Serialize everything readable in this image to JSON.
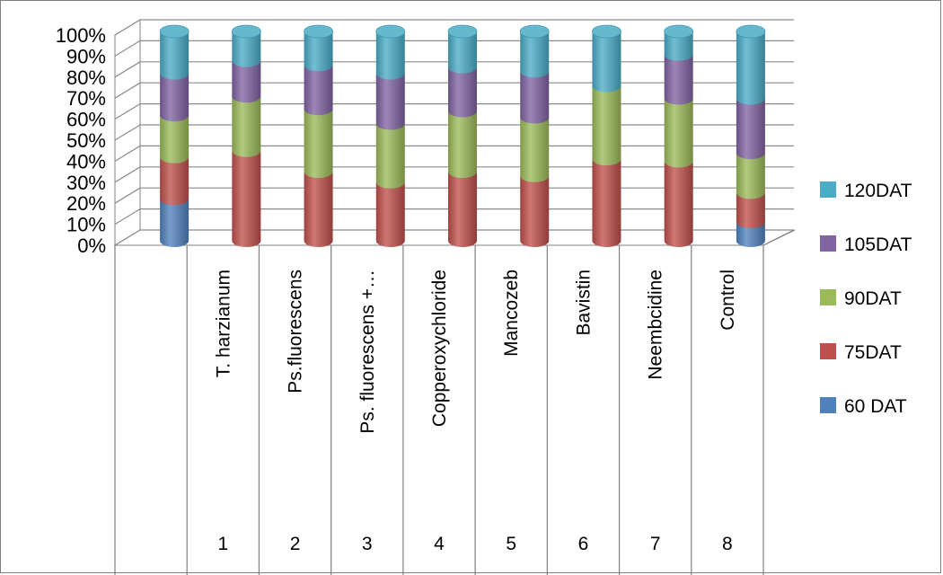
{
  "chart_data": {
    "type": "bar",
    "stacked": "percent",
    "style": "3d-cylinder",
    "categories": [
      {
        "number": "",
        "name": ""
      },
      {
        "number": "1",
        "name": "T. harzianum"
      },
      {
        "number": "2",
        "name": "Ps.fluorescens"
      },
      {
        "number": "3",
        "name": "Ps. fluorescens +…"
      },
      {
        "number": "4",
        "name": "Copperoxychloride"
      },
      {
        "number": "5",
        "name": "Mancozeb"
      },
      {
        "number": "6",
        "name": "Bavistin"
      },
      {
        "number": "7",
        "name": "Neembcidine"
      },
      {
        "number": "8",
        "name": "Control"
      }
    ],
    "series": [
      {
        "name": "60 DAT",
        "color": "#4f81bd",
        "values": [
          20,
          0,
          0,
          0,
          0,
          0,
          0,
          0,
          9
        ]
      },
      {
        "name": "75DAT",
        "color": "#c0504d",
        "values": [
          20,
          43,
          33,
          28,
          33,
          31,
          39,
          38,
          14
        ]
      },
      {
        "name": "90DAT",
        "color": "#9bbb59",
        "values": [
          20,
          26,
          30,
          28,
          29,
          28,
          35,
          30,
          19
        ]
      },
      {
        "name": "105DAT",
        "color": "#8064a2",
        "values": [
          20,
          17,
          21,
          24,
          21,
          22,
          0,
          21,
          26
        ]
      },
      {
        "name": "120DAT",
        "color": "#4bacc6",
        "values": [
          20,
          14,
          16,
          20,
          17,
          19,
          26,
          11,
          32
        ]
      }
    ],
    "yticks": [
      "0%",
      "10%",
      "20%",
      "30%",
      "40%",
      "50%",
      "60%",
      "70%",
      "80%",
      "90%",
      "100%"
    ],
    "ylim": [
      0,
      100
    ],
    "grid": true,
    "legend_position": "right"
  }
}
